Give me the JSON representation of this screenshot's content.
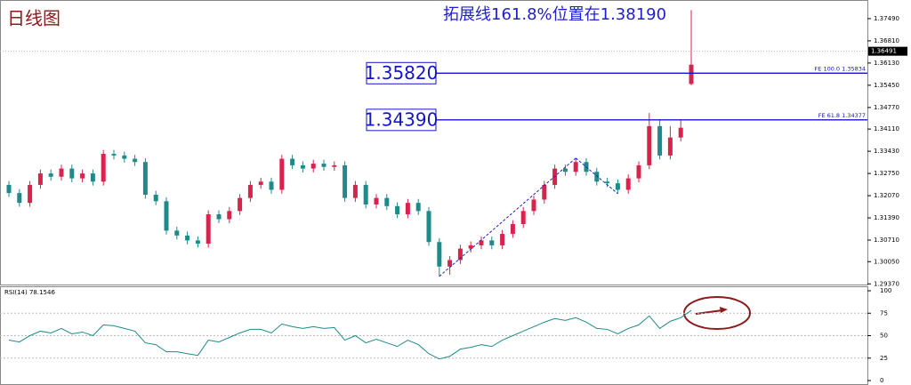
{
  "chart_data": [
    {
      "type": "candlestick",
      "title": "日线图",
      "annotation": "拓展线161.8%位置在1.38190",
      "up_color": "#d8234e",
      "down_color": "#1f8a8a",
      "open": [
        1.324,
        1.3215,
        1.3185,
        1.324,
        1.3275,
        1.3265,
        1.329,
        1.326,
        1.3275,
        1.325,
        1.3335,
        1.333,
        1.332,
        1.331,
        1.321,
        1.319,
        1.31,
        1.3085,
        1.307,
        1.306,
        1.315,
        1.3135,
        1.316,
        1.32,
        1.324,
        1.325,
        1.3225,
        1.332,
        1.33,
        1.329,
        1.3305,
        1.3295,
        1.33,
        1.32,
        1.324,
        1.318,
        1.32,
        1.3175,
        1.315,
        1.3185,
        1.316,
        1.3065,
        1.299,
        1.301,
        1.3045,
        1.3055,
        1.307,
        1.3055,
        1.309,
        1.312,
        1.316,
        1.3195,
        1.324,
        1.329,
        1.328,
        1.331,
        1.328,
        1.325,
        1.3245,
        1.3225,
        1.326,
        1.33,
        1.342,
        1.333,
        1.3385,
        1.3549
      ],
      "high": [
        1.3252,
        1.3227,
        1.3252,
        1.3287,
        1.3287,
        1.3302,
        1.3302,
        1.3287,
        1.3287,
        1.3347,
        1.3347,
        1.3342,
        1.3332,
        1.3322,
        1.3222,
        1.3202,
        1.3112,
        1.3097,
        1.3082,
        1.3162,
        1.3162,
        1.3172,
        1.3212,
        1.3252,
        1.3262,
        1.3262,
        1.3332,
        1.3332,
        1.3312,
        1.3317,
        1.3317,
        1.3312,
        1.3312,
        1.3252,
        1.3252,
        1.3212,
        1.3212,
        1.3187,
        1.3197,
        1.3197,
        1.3172,
        1.3077,
        1.3022,
        1.3057,
        1.3067,
        1.3082,
        1.3082,
        1.3102,
        1.3132,
        1.3172,
        1.3207,
        1.3252,
        1.3302,
        1.3302,
        1.3322,
        1.3322,
        1.3292,
        1.3262,
        1.3257,
        1.3272,
        1.3312,
        1.346,
        1.344,
        1.342,
        1.344,
        1.3775
      ],
      "low": [
        1.3203,
        1.3173,
        1.3173,
        1.3228,
        1.3253,
        1.3253,
        1.3248,
        1.3248,
        1.3238,
        1.3238,
        1.3318,
        1.3308,
        1.3298,
        1.3198,
        1.3178,
        1.3088,
        1.3073,
        1.3058,
        1.3048,
        1.3048,
        1.3123,
        1.3123,
        1.3148,
        1.3188,
        1.3228,
        1.3213,
        1.3213,
        1.3288,
        1.3278,
        1.3278,
        1.3283,
        1.3283,
        1.3188,
        1.3188,
        1.3168,
        1.3168,
        1.3163,
        1.3138,
        1.3138,
        1.3148,
        1.3053,
        1.296,
        1.2965,
        1.2998,
        1.3033,
        1.3043,
        1.3043,
        1.3043,
        1.3078,
        1.3108,
        1.3148,
        1.3183,
        1.3228,
        1.3268,
        1.3268,
        1.3268,
        1.3238,
        1.3233,
        1.3213,
        1.3213,
        1.3248,
        1.3288,
        1.3318,
        1.3318,
        1.3373,
        1.3545
      ],
      "close": [
        1.3215,
        1.3185,
        1.324,
        1.3275,
        1.3265,
        1.329,
        1.326,
        1.3275,
        1.325,
        1.3335,
        1.333,
        1.332,
        1.331,
        1.321,
        1.319,
        1.31,
        1.3085,
        1.307,
        1.306,
        1.315,
        1.3135,
        1.316,
        1.32,
        1.324,
        1.325,
        1.3225,
        1.332,
        1.33,
        1.329,
        1.3305,
        1.3295,
        1.33,
        1.32,
        1.324,
        1.318,
        1.32,
        1.3175,
        1.315,
        1.3185,
        1.316,
        1.3065,
        1.299,
        1.301,
        1.3045,
        1.3055,
        1.307,
        1.3055,
        1.309,
        1.312,
        1.316,
        1.3195,
        1.324,
        1.329,
        1.328,
        1.331,
        1.328,
        1.325,
        1.3245,
        1.3225,
        1.326,
        1.33,
        1.342,
        1.333,
        1.3385,
        1.3415,
        1.3608
      ],
      "ylim": [
        1.2935,
        1.3806
      ],
      "yticks": [
        {
          "value": 1.2937,
          "label": "1.29370"
        },
        {
          "value": 1.3005,
          "label": "1.30050"
        },
        {
          "value": 1.3071,
          "label": "1.30710"
        },
        {
          "value": 1.3139,
          "label": "1.31390"
        },
        {
          "value": 1.3207,
          "label": "1.32070"
        },
        {
          "value": 1.3275,
          "label": "1.32750"
        },
        {
          "value": 1.3343,
          "label": "1.33430"
        },
        {
          "value": 1.3411,
          "label": "1.34110"
        },
        {
          "value": 1.3477,
          "label": "1.34770"
        },
        {
          "value": 1.3545,
          "label": "1.35450"
        },
        {
          "value": 1.3613,
          "label": "1.36130"
        },
        {
          "value": 1.3681,
          "label": "1.36810"
        },
        {
          "value": 1.3749,
          "label": "1.37490"
        }
      ],
      "current_price": 1.36491,
      "level_color": "#1515c8",
      "levels": [
        {
          "value": 1.3582,
          "label": "1.35820",
          "fib_label": "FE 100.0  1.35834"
        },
        {
          "value": 1.3439,
          "label": "1.34390",
          "fib_label": "FE 61.8  1.34377"
        }
      ]
    },
    {
      "type": "line",
      "title": "RSI(14) 78.1546",
      "color": "#1f8a8a",
      "values": [
        45,
        43,
        50,
        55,
        53,
        58,
        52,
        54,
        50,
        62,
        61,
        58,
        55,
        42,
        40,
        32,
        32,
        30,
        28,
        45,
        43,
        48,
        53,
        57,
        57,
        53,
        63,
        60,
        58,
        60,
        58,
        59,
        45,
        50,
        42,
        46,
        42,
        38,
        45,
        40,
        30,
        24,
        27,
        35,
        37,
        40,
        38,
        45,
        50,
        55,
        60,
        65,
        69,
        67,
        70,
        65,
        58,
        57,
        52,
        58,
        62,
        72,
        58,
        66,
        70,
        78.1546
      ],
      "ylim": [
        0,
        100
      ],
      "yticks": [
        0,
        25,
        50,
        75,
        100
      ]
    }
  ]
}
